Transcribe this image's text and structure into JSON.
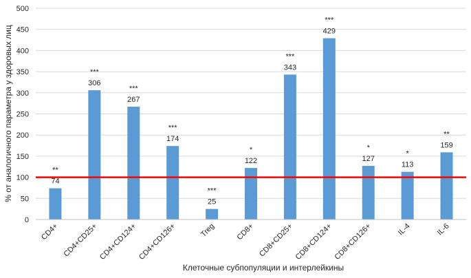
{
  "chart_data": {
    "type": "bar",
    "title": "",
    "xlabel": "Клеточные субпопуляции и интерлейкины",
    "ylabel": "% от аналогичного параметра у здоровых лиц",
    "ylim": [
      0,
      500
    ],
    "yticks": [
      "0",
      "50",
      "100",
      "150",
      "200",
      "250",
      "300",
      "350",
      "400",
      "450",
      "500"
    ],
    "grid": "horizontal",
    "legend": "none",
    "bar_color": "#5b9bd5",
    "reference_line": {
      "value": 100,
      "color": "#ff0000"
    },
    "categories": [
      "CD4+",
      "CD4+CD25+",
      "CD4+CD124+",
      "CD4+CD126+",
      "Treg",
      "CD8+",
      "CD8+CD25+",
      "CD8+CD124+",
      "CD8+CD126+",
      "IL-4",
      "IL-6"
    ],
    "values": [
      74,
      306,
      267,
      174,
      25,
      122,
      343,
      429,
      127,
      113,
      159
    ],
    "value_labels": [
      "74",
      "306",
      "267",
      "174",
      "25",
      "122",
      "343",
      "429",
      "127",
      "113",
      "159"
    ],
    "significance": [
      "**",
      "***",
      "***",
      "***",
      "***",
      "*",
      "***",
      "***",
      "*",
      "*",
      "**"
    ]
  }
}
